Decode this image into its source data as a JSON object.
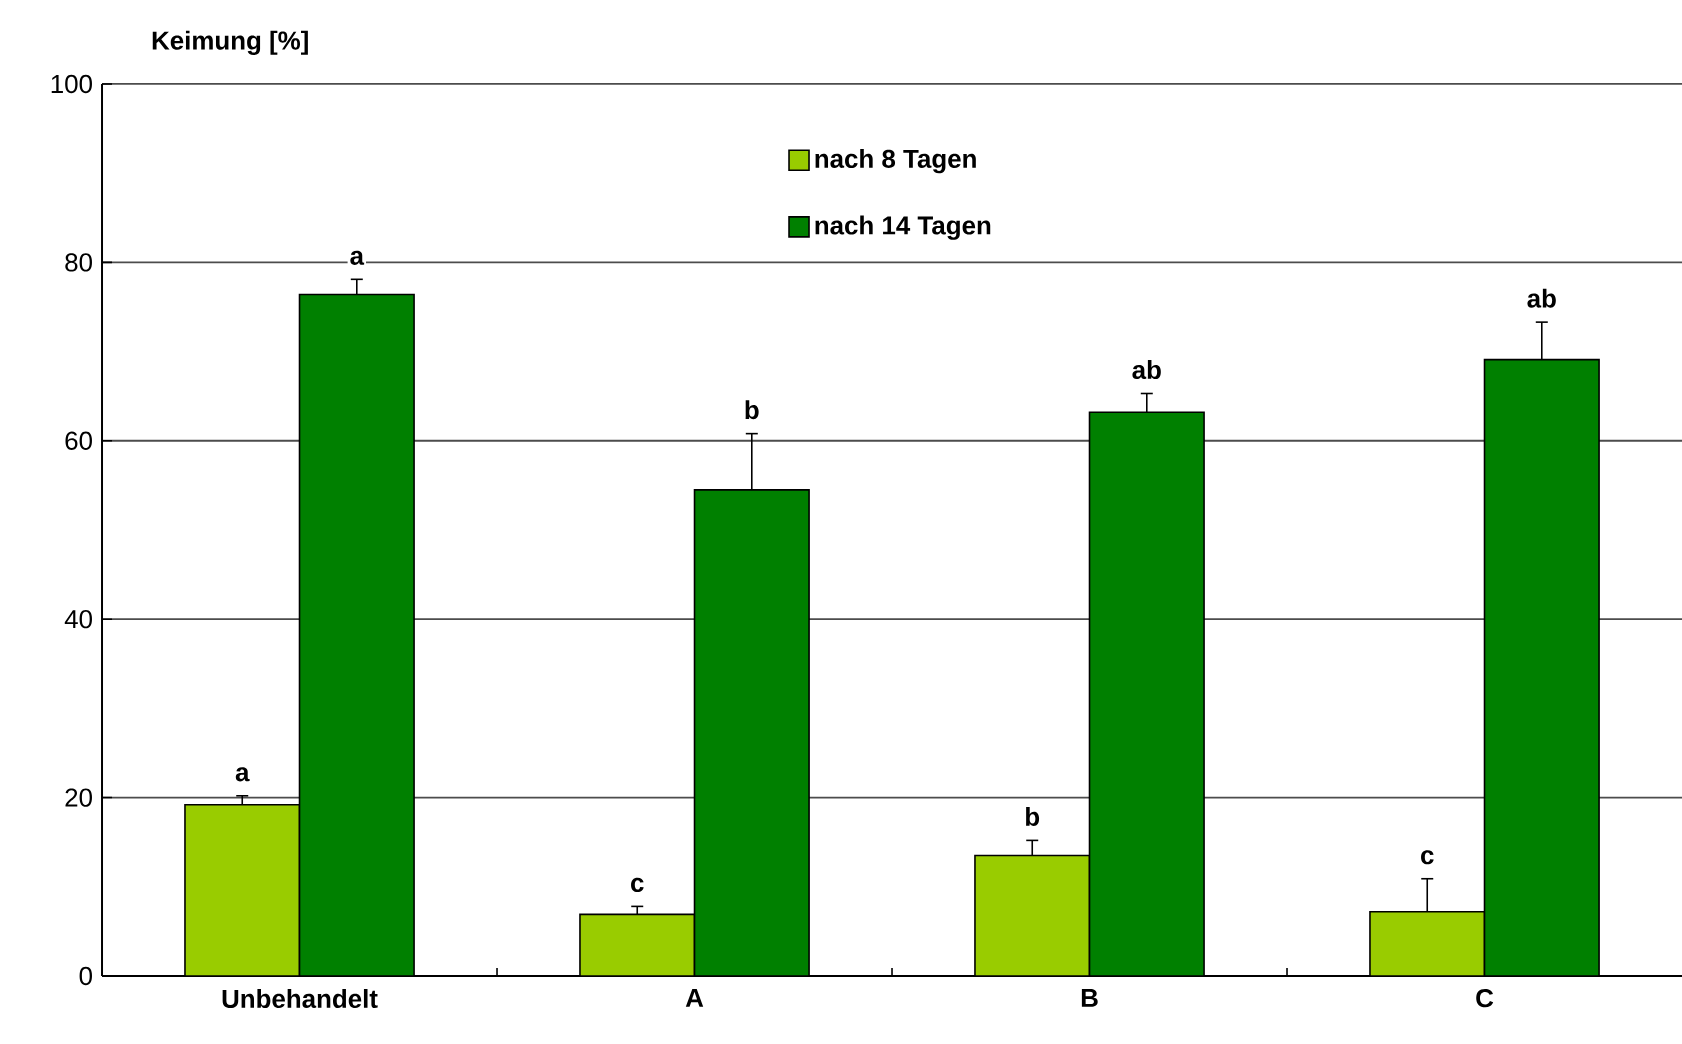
{
  "chart_data": {
    "type": "bar",
    "ylabel": "Keimung [%]",
    "categories": [
      "Unbehandelt",
      "A",
      "B",
      "C"
    ],
    "series": [
      {
        "name": "nach 8 Tagen",
        "color": "#99cc00",
        "values": [
          19.2,
          6.9,
          13.5,
          7.2
        ],
        "errors": [
          [
            19.2,
            20.2
          ],
          [
            6.9,
            7.8
          ],
          [
            13.5,
            15.2
          ],
          [
            7.2,
            10.9
          ]
        ],
        "value_labels": [
          "a",
          "c",
          "b",
          "c"
        ]
      },
      {
        "name": "nach 14 Tagen",
        "color": "#008000",
        "values": [
          76.4,
          54.5,
          63.2,
          69.1
        ],
        "errors": [
          [
            76.4,
            78.1
          ],
          [
            54.5,
            60.8
          ],
          [
            63.2,
            65.3
          ],
          [
            69.1,
            73.3
          ]
        ],
        "value_labels": [
          "a",
          "b",
          "ab",
          "ab"
        ]
      }
    ],
    "ylim": [
      0,
      100
    ],
    "yticks": [
      0,
      20,
      40,
      60,
      80,
      100
    ],
    "grid": "y",
    "legend": "top"
  }
}
